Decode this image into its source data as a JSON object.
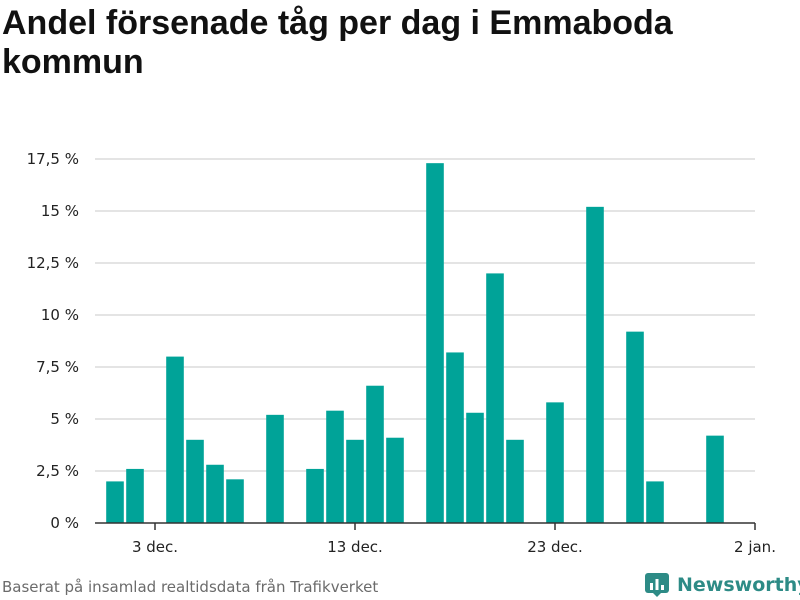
{
  "title": "Andel försenade tåg per dag i Emmaboda kommun",
  "footer": {
    "source": "Baserat på insamlad realtidsdata från Trafikverket"
  },
  "brand": {
    "name": "Newsworthy",
    "icon": "bar-chart-logo-icon",
    "color": "#2d8b86"
  },
  "chart_data": {
    "type": "bar",
    "title": "Andel försenade tåg per dag i Emmaboda kommun",
    "xlabel": "",
    "ylabel": "",
    "bar_color": "#00a398",
    "x_start": "2018-11-30",
    "x_end": "2019-01-02",
    "x_ticks": [
      {
        "date": "2018-12-03",
        "label": "3 dec."
      },
      {
        "date": "2018-12-13",
        "label": "13 dec."
      },
      {
        "date": "2018-12-23",
        "label": "23 dec."
      },
      {
        "date": "2019-01-02",
        "label": "2 jan."
      }
    ],
    "ylim": [
      0,
      17.5
    ],
    "y_ticks": [
      {
        "value": 0,
        "label": "0 %"
      },
      {
        "value": 2.5,
        "label": "2,5 %"
      },
      {
        "value": 5,
        "label": "5 %"
      },
      {
        "value": 7.5,
        "label": "7,5 %"
      },
      {
        "value": 10,
        "label": "10 %"
      },
      {
        "value": 12.5,
        "label": "12,5 %"
      },
      {
        "value": 15,
        "label": "15 %"
      },
      {
        "value": 17.5,
        "label": "17,5 %"
      }
    ],
    "grid": true,
    "points": [
      {
        "date": "2018-12-01",
        "value": 2.0
      },
      {
        "date": "2018-12-02",
        "value": 2.6
      },
      {
        "date": "2018-12-04",
        "value": 8.0
      },
      {
        "date": "2018-12-05",
        "value": 4.0
      },
      {
        "date": "2018-12-06",
        "value": 2.8
      },
      {
        "date": "2018-12-07",
        "value": 2.1
      },
      {
        "date": "2018-12-09",
        "value": 5.2
      },
      {
        "date": "2018-12-11",
        "value": 2.6
      },
      {
        "date": "2018-12-12",
        "value": 5.4
      },
      {
        "date": "2018-12-13",
        "value": 4.0
      },
      {
        "date": "2018-12-14",
        "value": 6.6
      },
      {
        "date": "2018-12-15",
        "value": 4.1
      },
      {
        "date": "2018-12-17",
        "value": 17.3
      },
      {
        "date": "2018-12-18",
        "value": 8.2
      },
      {
        "date": "2018-12-19",
        "value": 5.3
      },
      {
        "date": "2018-12-20",
        "value": 12.0
      },
      {
        "date": "2018-12-21",
        "value": 4.0
      },
      {
        "date": "2018-12-23",
        "value": 5.8
      },
      {
        "date": "2018-12-25",
        "value": 15.2
      },
      {
        "date": "2018-12-27",
        "value": 9.2
      },
      {
        "date": "2018-12-28",
        "value": 2.0
      },
      {
        "date": "2018-12-31",
        "value": 4.2
      }
    ]
  }
}
